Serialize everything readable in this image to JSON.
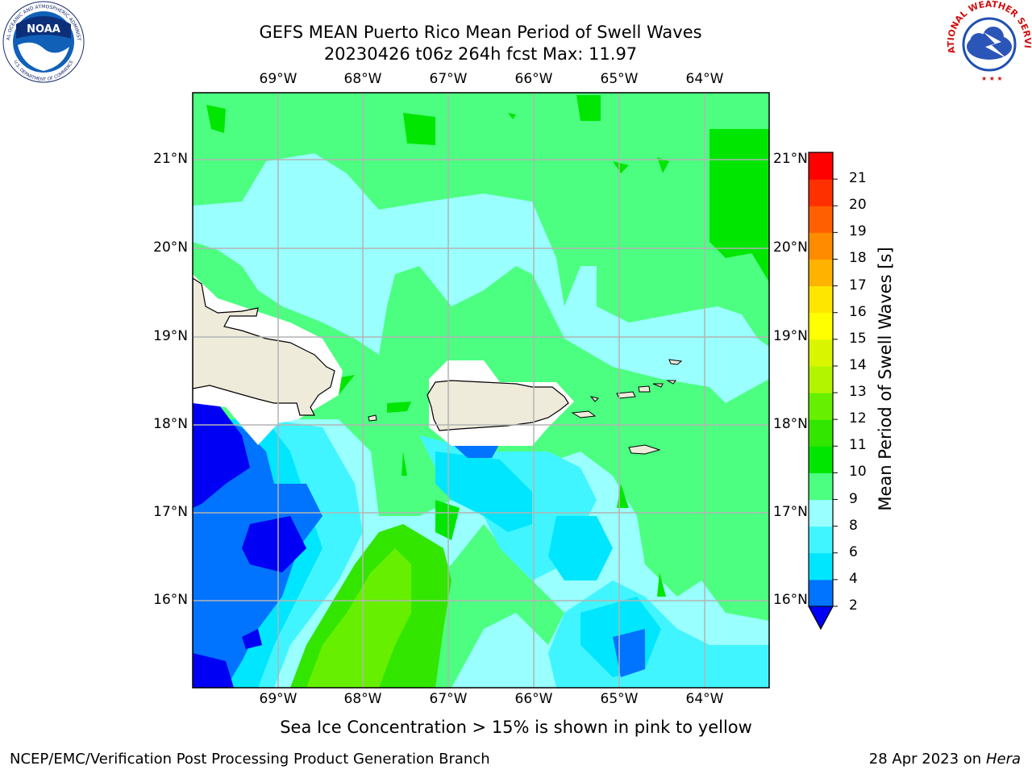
{
  "title": {
    "line1": "GEFS MEAN Puerto Rico Mean Period of Swell Waves",
    "line2": "20230426 t06z 264h fcst   Max: 11.97"
  },
  "logos": {
    "noaa": {
      "text": "NOAA",
      "ring_text": "NATIONAL OCEANIC AND ATMOSPHERIC ADMINISTRATION",
      "bottom_text": "U.S. DEPARTMENT OF COMMERCE"
    },
    "nws": {
      "ring_text": "NATIONAL WEATHER SERVICE"
    }
  },
  "map": {
    "lon_labels": [
      "69°W",
      "68°W",
      "67°W",
      "66°W",
      "65°W",
      "64°W"
    ],
    "lat_labels": [
      "21°N",
      "20°N",
      "19°N",
      "18°N",
      "17°N",
      "16°N"
    ],
    "colors": {
      "land": "#eeebdb",
      "mask": "#ffffff",
      "grid": "#b4b4b4"
    }
  },
  "colorbar": {
    "label": "Mean Period of Swell Waves [s]",
    "ticks": [
      "2",
      "4",
      "6",
      "8",
      "9",
      "10",
      "11",
      "12",
      "13",
      "14",
      "15",
      "16",
      "17",
      "18",
      "19",
      "20",
      "21"
    ],
    "extend_color": "#0000f5",
    "colors": [
      "#0073ff",
      "#00e6ff",
      "#40f5ff",
      "#99ffff",
      "#4cff80",
      "#00e600",
      "#33e600",
      "#66f000",
      "#b3f500",
      "#d9f500",
      "#ffff00",
      "#ffe600",
      "#ffb300",
      "#ff8c00",
      "#ff5f00",
      "#ff3000",
      "#ff0000"
    ]
  },
  "note": "Sea Ice Concentration > 15% is shown in pink to yellow",
  "footer": {
    "left": "NCEP/EMC/Verification Post Processing Product Generation Branch",
    "date": "28 Apr 2023 on ",
    "host": "Hera"
  }
}
